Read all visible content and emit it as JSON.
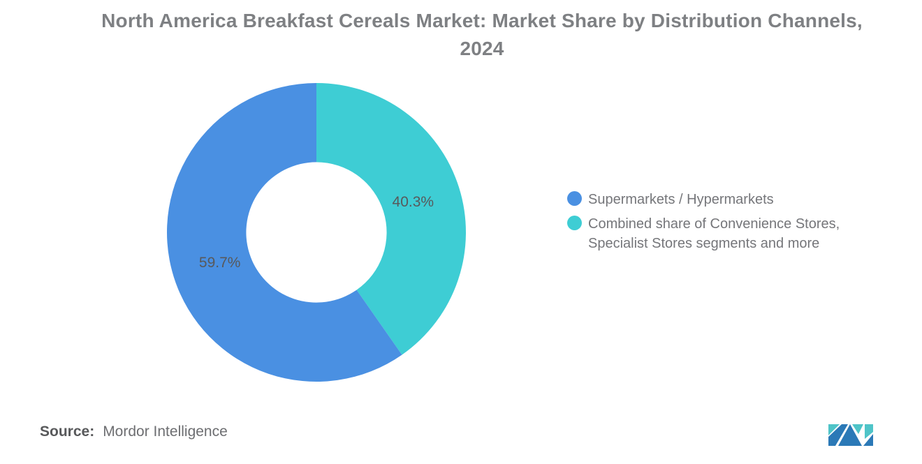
{
  "title": "North America Breakfast Cereals Market: Market Share by Distribution Channels, 2024",
  "source": {
    "label": "Source:",
    "value": "Mordor Intelligence"
  },
  "legend": {
    "items": [
      {
        "label": "Supermarkets / Hypermarkets",
        "color": "#4a90e2"
      },
      {
        "label": "Combined share of Convenience Stores, Specialist Stores segments and more",
        "color": "#3ecdd4"
      }
    ]
  },
  "logo": {
    "name": "Mordor Intelligence logo",
    "blue": "#2b79b7",
    "teal": "#4fc4c8"
  },
  "chart_data": {
    "type": "pie",
    "donut": true,
    "title": "North America Breakfast Cereals Market: Market Share by Distribution Channels, 2024",
    "series": [
      {
        "name": "Supermarkets / Hypermarkets",
        "value": 59.7,
        "label": "59.7%",
        "color": "#4a90e2"
      },
      {
        "name": "Combined share of Convenience Stores, Specialist Stores segments and more",
        "value": 40.3,
        "label": "40.3%",
        "color": "#3ecdd4"
      }
    ],
    "start_angle_deg": 0,
    "direction": "clockwise",
    "first_drawn_slice": "Combined share of Convenience Stores, Specialist Stores segments and more",
    "inner_radius_ratio": 0.47,
    "legend_position": "right",
    "data_label_color": "#58595b",
    "background": "#ffffff"
  }
}
